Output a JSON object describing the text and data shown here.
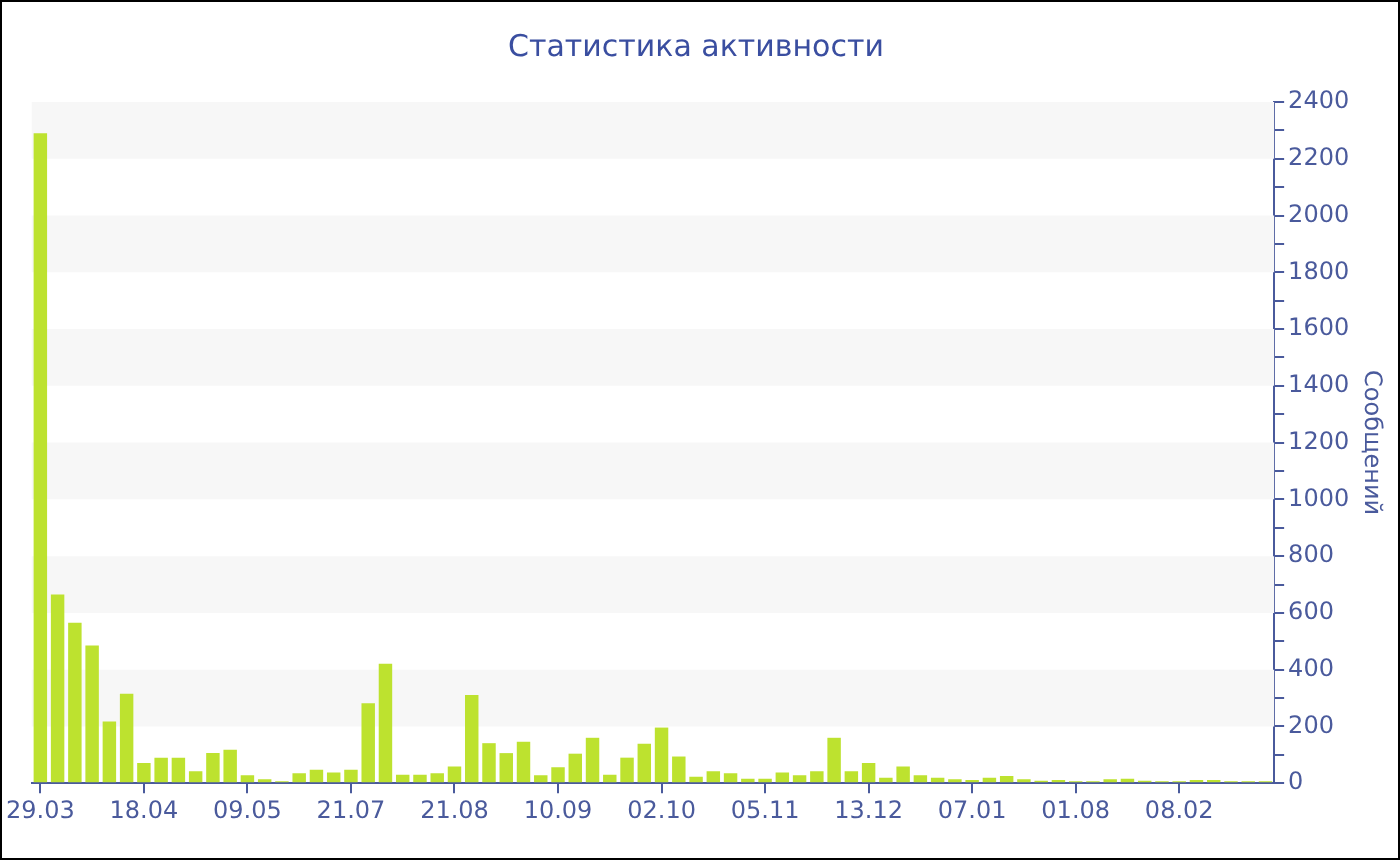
{
  "chart_data": {
    "type": "bar",
    "title": "Статистика активности",
    "ylabel": "Сообщений",
    "categories": [
      "29.03",
      null,
      null,
      null,
      null,
      null,
      "18.04",
      null,
      null,
      null,
      null,
      null,
      "09.05",
      null,
      null,
      null,
      null,
      null,
      "21.07",
      null,
      null,
      null,
      null,
      null,
      "21.08",
      null,
      null,
      null,
      null,
      null,
      "10.09",
      null,
      null,
      null,
      null,
      null,
      "02.10",
      null,
      null,
      null,
      null,
      null,
      "05.11",
      null,
      null,
      null,
      null,
      null,
      "13.12",
      null,
      null,
      null,
      null,
      null,
      "07.01",
      null,
      null,
      null,
      null,
      null,
      "01.08",
      null,
      null,
      null,
      null,
      null,
      "08.02",
      null,
      null,
      null,
      null,
      null
    ],
    "values": [
      2290,
      665,
      565,
      485,
      217,
      315,
      71,
      90,
      90,
      42,
      106,
      118,
      28,
      14,
      7,
      35,
      47,
      38,
      47,
      282,
      421,
      30,
      30,
      35,
      59,
      311,
      141,
      106,
      146,
      28,
      56,
      104,
      160,
      30,
      90,
      139,
      196,
      94,
      23,
      42,
      35,
      16,
      16,
      38,
      28,
      42,
      160,
      42,
      71,
      19,
      59,
      28,
      19,
      14,
      11,
      19,
      25,
      14,
      9,
      11,
      7,
      7,
      14,
      16,
      9,
      7,
      7,
      11,
      11,
      7,
      7,
      7
    ],
    "color": "#bde22f",
    "ylim": [
      0,
      2400
    ],
    "yticks": [
      0,
      {
        "value": 100,
        "label": null
      },
      200,
      {
        "value": 300,
        "label": null
      },
      400,
      {
        "value": 500,
        "label": null
      },
      600,
      {
        "value": 700,
        "label": null
      },
      800,
      {
        "value": 900,
        "label": null
      },
      1000,
      {
        "value": 1100,
        "label": null
      },
      1200,
      {
        "value": 1300,
        "label": null
      },
      1400,
      {
        "value": 1500,
        "label": null
      },
      1600,
      {
        "value": 1700,
        "label": null
      },
      1800,
      {
        "value": 1900,
        "label": null
      },
      2000,
      {
        "value": 2100,
        "label": null
      },
      2200,
      {
        "value": 2300,
        "label": null
      },
      2400
    ],
    "bands": [
      {
        "axis": "y",
        "from": 200,
        "to": 400,
        "color": "#f7f7f7"
      },
      {
        "axis": "y",
        "from": 600,
        "to": 800,
        "color": "#f7f7f7"
      },
      {
        "axis": "y",
        "from": 1000,
        "to": 1200,
        "color": "#f7f7f7"
      },
      {
        "axis": "y",
        "from": 1400,
        "to": 1600,
        "color": "#f7f7f7"
      },
      {
        "axis": "y",
        "from": 1800,
        "to": 2000,
        "color": "#f7f7f7"
      },
      {
        "axis": "y",
        "from": 2200,
        "to": 2400,
        "color": "#f7f7f7"
      }
    ]
  }
}
